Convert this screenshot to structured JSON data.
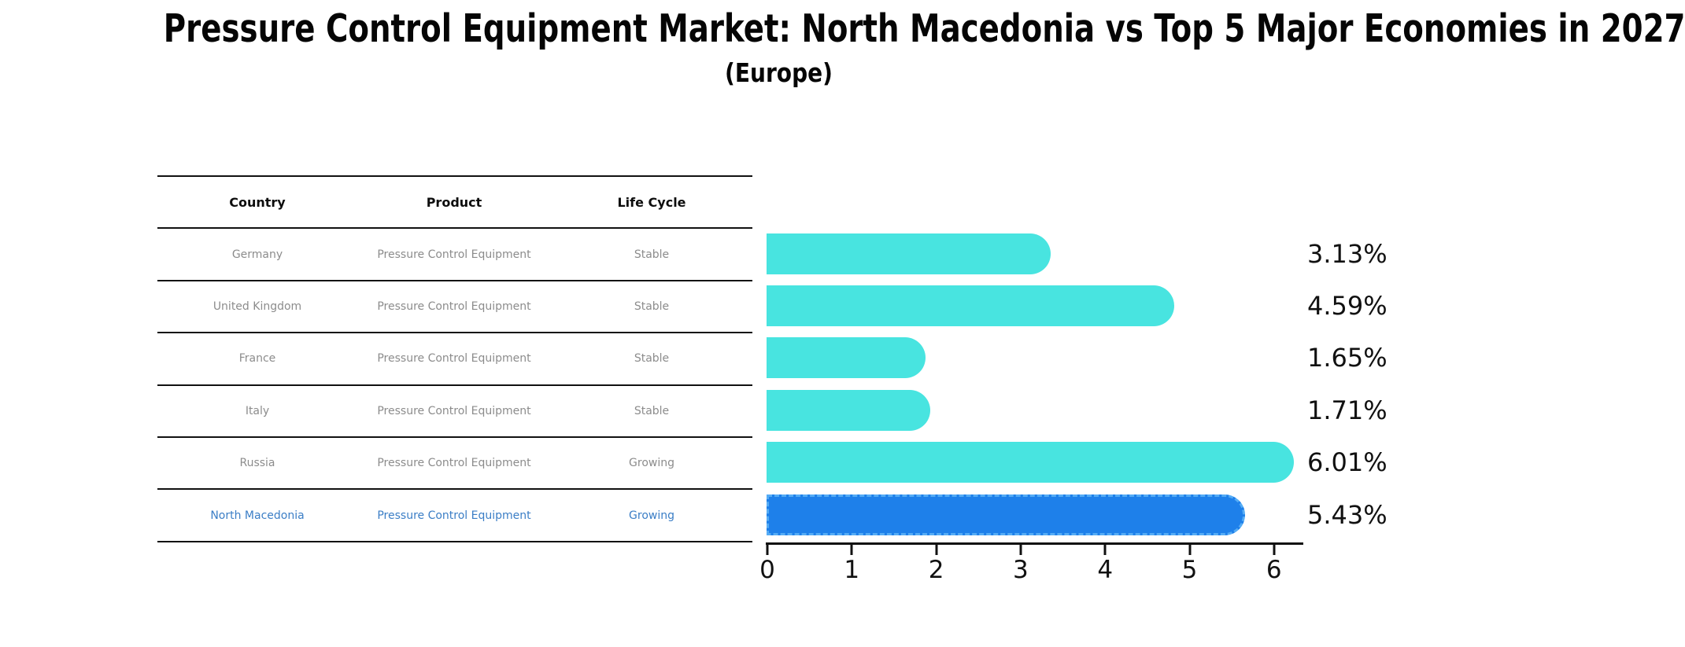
{
  "title": "Pressure Control Equipment Market: North Macedonia vs Top 5 Major Economies in 2027",
  "subtitle": "(Europe)",
  "table": {
    "headers": {
      "country": "Country",
      "product": "Product",
      "life_cycle": "Life Cycle"
    },
    "rows": [
      {
        "country": "Germany",
        "product": "Pressure Control Equipment",
        "life_cycle": "Stable"
      },
      {
        "country": "United Kingdom",
        "product": "Pressure Control Equipment",
        "life_cycle": "Stable"
      },
      {
        "country": "France",
        "product": "Pressure Control Equipment",
        "life_cycle": "Stable"
      },
      {
        "country": "Italy",
        "product": "Pressure Control Equipment",
        "life_cycle": "Stable"
      },
      {
        "country": "Russia",
        "product": "Pressure Control Equipment",
        "life_cycle": "Growing"
      },
      {
        "country": "North Macedonia",
        "product": "Pressure Control Equipment",
        "life_cycle": "Growing"
      }
    ]
  },
  "chart_data": {
    "type": "bar",
    "orientation": "horizontal",
    "title": "Pressure Control Equipment Market: North Macedonia vs Top 5 Major Economies in 2027 (Europe)",
    "categories": [
      "Germany",
      "United Kingdom",
      "France",
      "Italy",
      "Russia",
      "North Macedonia"
    ],
    "values": [
      3.13,
      4.59,
      1.65,
      1.71,
      6.01,
      5.43
    ],
    "labels": [
      "3.13%",
      "4.59%",
      "1.65%",
      "1.71%",
      "6.01%",
      "5.43%"
    ],
    "xticks": [
      0,
      1,
      2,
      3,
      4,
      5,
      6
    ],
    "xlim": [
      0,
      6.35
    ],
    "xlabel": "",
    "ylabel": "",
    "grid": false,
    "legend": false,
    "highlight_index": 5,
    "colors": {
      "default_bar": "#48E4E0",
      "highlight_bar": "#1E80EA",
      "highlight_border": "#55ACF5",
      "axis": "#111111",
      "value_label_text": "#111111",
      "table_row_text": "#8C8C8C",
      "table_header_text": "#0D0D0D",
      "highlight_row_text": "#3B7EC6"
    }
  }
}
